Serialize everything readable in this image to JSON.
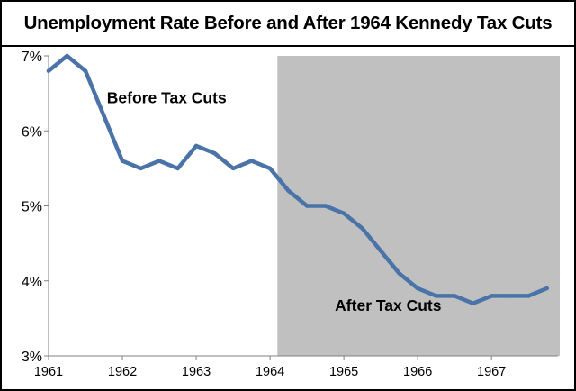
{
  "chart_data": {
    "type": "line",
    "title": "Unemployment Rate Before and After 1964 Kennedy Tax Cuts",
    "xlabel": "",
    "ylabel": "",
    "x_tick_labels": [
      "1961",
      "1962",
      "1963",
      "1964",
      "1965",
      "1966",
      "1967"
    ],
    "xlim": [
      1961,
      1967.9
    ],
    "y_tick_labels": [
      "3%",
      "4%",
      "5%",
      "6%",
      "7%"
    ],
    "y_ticks": [
      3,
      4,
      5,
      6,
      7
    ],
    "ylim": [
      3,
      7
    ],
    "grid": false,
    "shaded_region": {
      "from": 1964.1,
      "to": 1967.9,
      "color": "#c0c0c0"
    },
    "annotations": {
      "before": {
        "text": "Before Tax Cuts",
        "x": 1962.6,
        "y": 6.37
      },
      "after": {
        "text": "After Tax Cuts",
        "x": 1965.6,
        "y": 3.6
      }
    },
    "series": [
      {
        "name": "Unemployment Rate",
        "color": "#4a73a8",
        "x": [
          1961.0,
          1961.25,
          1961.5,
          1961.75,
          1962.0,
          1962.25,
          1962.5,
          1962.75,
          1963.0,
          1963.25,
          1963.5,
          1963.75,
          1964.0,
          1964.25,
          1964.5,
          1964.75,
          1965.0,
          1965.25,
          1965.5,
          1965.75,
          1966.0,
          1966.25,
          1966.5,
          1966.75,
          1967.0,
          1967.25,
          1967.5,
          1967.75
        ],
        "values": [
          6.8,
          7.0,
          6.8,
          6.2,
          5.6,
          5.5,
          5.6,
          5.5,
          5.8,
          5.7,
          5.5,
          5.6,
          5.5,
          5.2,
          5.0,
          5.0,
          4.9,
          4.7,
          4.4,
          4.1,
          3.9,
          3.8,
          3.8,
          3.7,
          3.8,
          3.8,
          3.8,
          3.9
        ]
      }
    ]
  }
}
